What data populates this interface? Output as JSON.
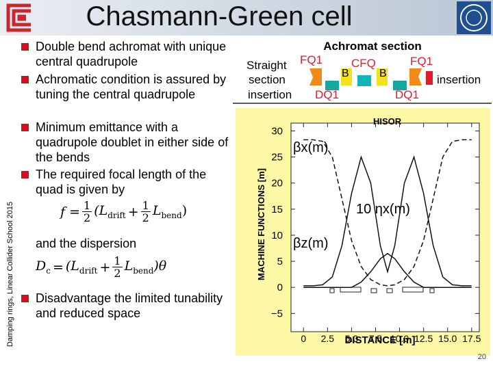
{
  "header": {
    "title": "Chasmann-Green cell"
  },
  "sidebar": "Damping rings, Linear Collider School 2015",
  "bullets": [
    "Double bend achromat with unique central quadrupole",
    "Achromatic condition is assured by tuning the central quadrupole",
    "Minimum emittance with a quadrupole doublet in either side of the bends",
    "The required focal length of the quad is given by"
  ],
  "formula1": {
    "lhs": "f =",
    "frac1": [
      "1",
      "2"
    ],
    "open": "(L",
    "sub1": "drift",
    "plus": "+",
    "frac2": [
      "1",
      "2"
    ],
    "l": "L",
    "sub2": "bend",
    "close": ")"
  },
  "dispersion_text": "and the dispersion",
  "formula2": {
    "lhs": "D",
    "lhs_sub": "c",
    "eq": "=",
    "open": "(L",
    "sub1": "drift",
    "plus": "+",
    "frac": [
      "1",
      "2"
    ],
    "l": "L",
    "sub2": "bend",
    "close": ")θ"
  },
  "last_bullet": "Disadvantage the limited tunability and reduced space",
  "page_number": "20",
  "lattice": {
    "title": "Achromat section",
    "left_top": "Straight",
    "left_mid": "section",
    "left_bottom": "insertion",
    "right": "insertion",
    "fq1_left": "FQ1",
    "cfq": "CFQ",
    "fq1_right": "FQ1",
    "b_left": "B",
    "b_right": "B",
    "dq1_left": "DQ1",
    "dq1_right": "DQ1"
  },
  "chart_data": {
    "type": "line",
    "title": "HISOR",
    "xlabel": "DISTANCE [m]",
    "ylabel": "MACHINE FUNCTIONS [m]",
    "x": [
      0,
      1,
      2,
      3,
      4,
      5,
      6,
      7,
      8,
      8.75,
      9.5,
      10.5,
      11.5,
      12.5,
      13.5,
      14.5,
      15.5,
      16.5,
      17.5
    ],
    "series": [
      {
        "name": "βx(m)",
        "color": "#111111",
        "style": "dashed",
        "values": [
          28.3,
          28.3,
          28,
          25,
          17,
          9,
          4,
          1.5,
          0.5,
          0.3,
          0.5,
          1.5,
          4,
          9,
          17,
          25,
          28,
          28.3,
          28.3
        ]
      },
      {
        "name": "10 ηx(m)",
        "color": "#111111",
        "style": "solid",
        "values": [
          0,
          0,
          0,
          0,
          0,
          0,
          1,
          3,
          5.5,
          6.5,
          5.5,
          3,
          1,
          0,
          0,
          0,
          0,
          0,
          0
        ]
      },
      {
        "name": "βz(m)",
        "color": "#111111",
        "style": "solid",
        "values": [
          0.3,
          0.3,
          0.5,
          2,
          8,
          18,
          25,
          20,
          8,
          3,
          8,
          20,
          25,
          18,
          8,
          2,
          0.5,
          0.3,
          0.3
        ]
      }
    ],
    "xlim": [
      -1.3,
      18.3
    ],
    "ylim": [
      -8.5,
      31.5
    ],
    "xticks": [
      0,
      2.5,
      {
        "value": 5,
        "label": "5.0"
      },
      7.5,
      {
        "value": 10,
        "label": "10.0"
      },
      12.5,
      {
        "value": 15,
        "label": "15.0"
      },
      17.5
    ],
    "yticks": [
      30,
      25,
      20,
      15,
      10,
      5,
      0,
      {
        "value": -5,
        "label": "−5"
      }
    ]
  }
}
